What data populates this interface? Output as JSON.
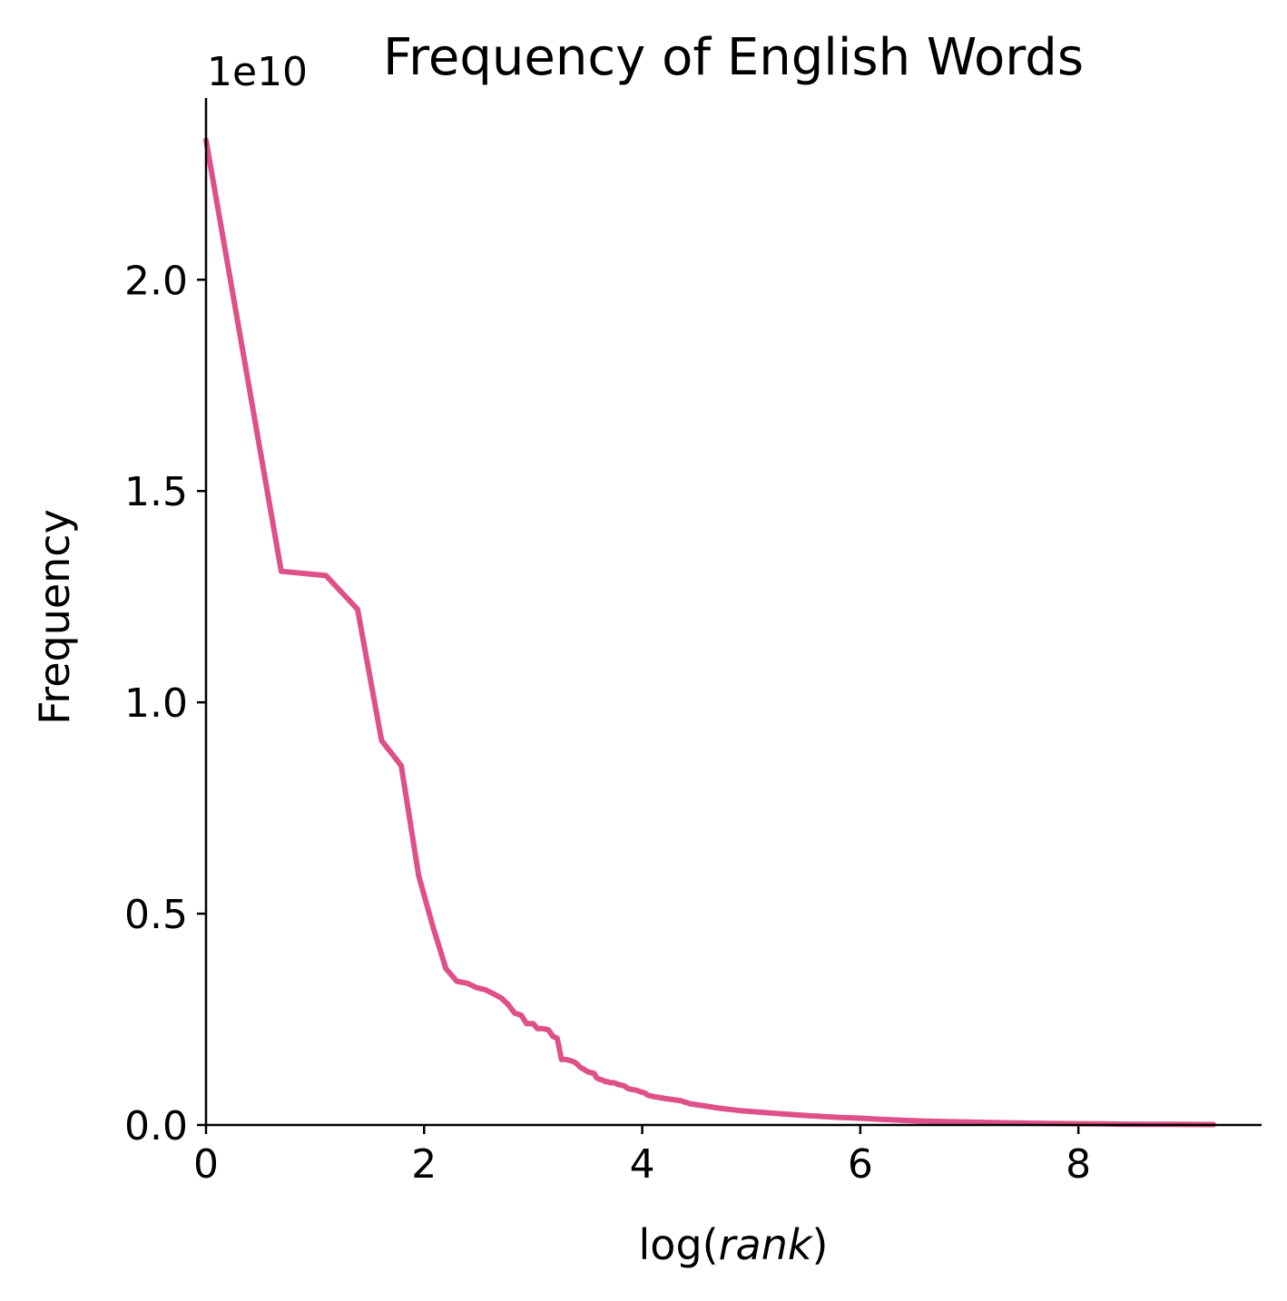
{
  "chart_data": {
    "type": "line",
    "title": "Frequency of English Words",
    "xlabel_prefix": "log(",
    "xlabel_var": "rank",
    "xlabel_suffix": ")",
    "ylabel": "Frequency",
    "y_offset_label": "1e10",
    "xlim": [
      0,
      9.68
    ],
    "ylim": [
      0,
      2.43
    ],
    "x_ticks": [
      0,
      2,
      4,
      6,
      8
    ],
    "x_tick_labels": [
      "0",
      "2",
      "4",
      "6",
      "8"
    ],
    "y_ticks": [
      0,
      0.5,
      1.0,
      1.5,
      2.0
    ],
    "y_tick_labels": [
      "0.0",
      "0.5",
      "1.0",
      "1.5",
      "2.0"
    ],
    "grid": false,
    "colors": {
      "line": "#de5087",
      "axis": "#000000"
    },
    "series": [
      {
        "x": [
          0,
          0.69,
          1.1,
          1.39,
          1.61,
          1.79,
          1.95,
          2.08,
          2.2,
          2.3,
          2.4,
          2.48,
          2.56,
          2.64,
          2.71,
          2.77,
          2.83,
          2.89,
          2.94,
          3.0,
          3.04,
          3.09,
          3.14,
          3.18,
          3.22,
          3.26,
          3.3,
          3.33,
          3.37,
          3.4,
          3.43,
          3.47,
          3.5,
          3.53,
          3.56,
          3.58,
          3.61,
          3.64,
          3.66,
          3.69,
          3.71,
          3.74,
          3.76,
          3.78,
          3.81,
          3.83,
          3.85,
          3.87,
          3.89,
          3.91,
          3.93,
          3.95,
          3.97,
          3.99,
          4.01,
          4.03,
          4.04,
          4.06,
          4.08,
          4.09,
          4.11,
          4.13,
          4.14,
          4.16,
          4.17,
          4.19,
          4.2,
          4.22,
          4.23,
          4.25,
          4.26,
          4.28,
          4.29,
          4.3,
          4.32,
          4.33,
          4.34,
          4.36,
          4.37,
          4.38,
          4.39,
          4.41,
          4.42,
          4.43,
          4.44,
          4.45,
          4.47,
          4.48,
          4.49,
          4.5,
          4.6,
          4.7,
          4.8,
          4.9,
          5.0,
          5.2,
          5.4,
          5.6,
          5.8,
          6.0,
          6.2,
          6.4,
          6.6,
          6.8,
          7.0,
          7.2,
          7.4,
          7.6,
          7.8,
          8.0,
          8.2,
          8.4,
          8.6,
          8.8,
          9.0,
          9.24
        ],
        "values": [
          2.33,
          1.31,
          1.3,
          1.22,
          0.91,
          0.85,
          0.59,
          0.47,
          0.37,
          0.34,
          0.335,
          0.325,
          0.32,
          0.31,
          0.3,
          0.285,
          0.265,
          0.26,
          0.24,
          0.24,
          0.228,
          0.228,
          0.225,
          0.21,
          0.205,
          0.155,
          0.155,
          0.153,
          0.15,
          0.145,
          0.137,
          0.131,
          0.126,
          0.124,
          0.122,
          0.112,
          0.108,
          0.106,
          0.103,
          0.102,
          0.1,
          0.1,
          0.098,
          0.096,
          0.094,
          0.093,
          0.09,
          0.086,
          0.085,
          0.084,
          0.083,
          0.082,
          0.08,
          0.078,
          0.077,
          0.075,
          0.072,
          0.07,
          0.069,
          0.068,
          0.067,
          0.066,
          0.066,
          0.065,
          0.064,
          0.064,
          0.063,
          0.062,
          0.062,
          0.061,
          0.061,
          0.06,
          0.06,
          0.059,
          0.059,
          0.058,
          0.058,
          0.057,
          0.056,
          0.055,
          0.054,
          0.053,
          0.052,
          0.051,
          0.05,
          0.05,
          0.049,
          0.049,
          0.048,
          0.048,
          0.044,
          0.04,
          0.037,
          0.034,
          0.032,
          0.028,
          0.024,
          0.021,
          0.018,
          0.016,
          0.013,
          0.011,
          0.009,
          0.008,
          0.007,
          0.006,
          0.005,
          0.004,
          0.0035,
          0.003,
          0.0025,
          0.002,
          0.0017,
          0.0014,
          0.0012,
          0.001
        ]
      }
    ]
  }
}
